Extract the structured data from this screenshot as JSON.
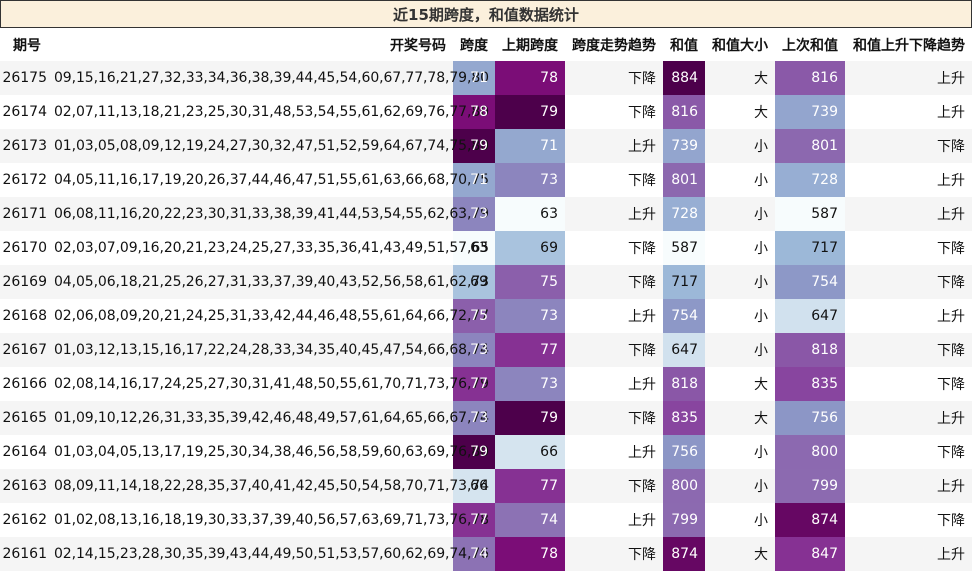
{
  "title": "近15期跨度，和值数据统计",
  "headers": {
    "issue": "期号",
    "draw": "开奖号码",
    "span": "跨度",
    "prev_span": "上期跨度",
    "span_trend": "跨度走势趋势",
    "sum": "和值",
    "sum_size": "和值大小",
    "prev_sum": "上次和值",
    "sum_trend": "和值上升下降趋势"
  },
  "colors": {
    "scale_light": "#f7fcfd",
    "scale_mid": "#8c96c6",
    "scale_dark": "#4d004b",
    "header_bg": "#fbf0dc",
    "stripe": "#f5f5f5"
  },
  "rows": [
    {
      "issue": "26175",
      "draw": "09,15,16,21,27,32,33,34,36,38,39,44,45,54,60,67,77,78,79,80",
      "span": "71",
      "prev_span": "78",
      "span_trend": "下降",
      "sum": "884",
      "sum_size": "大",
      "prev_sum": "816",
      "sum_trend": "上升"
    },
    {
      "issue": "26174",
      "draw": "02,07,11,13,18,21,23,25,30,31,48,53,54,55,61,62,69,76,77,80",
      "span": "78",
      "prev_span": "79",
      "span_trend": "下降",
      "sum": "816",
      "sum_size": "大",
      "prev_sum": "739",
      "sum_trend": "上升"
    },
    {
      "issue": "26173",
      "draw": "01,03,05,08,09,12,19,24,27,30,32,47,51,52,59,64,67,74,75,80",
      "span": "79",
      "prev_span": "71",
      "span_trend": "上升",
      "sum": "739",
      "sum_size": "小",
      "prev_sum": "801",
      "sum_trend": "下降"
    },
    {
      "issue": "26172",
      "draw": "04,05,11,16,17,19,20,26,37,44,46,47,51,55,61,63,66,68,70,75",
      "span": "71",
      "prev_span": "73",
      "span_trend": "下降",
      "sum": "801",
      "sum_size": "小",
      "prev_sum": "728",
      "sum_trend": "上升"
    },
    {
      "issue": "26171",
      "draw": "06,08,11,16,20,22,23,30,31,33,38,39,41,44,53,54,55,62,63,79",
      "span": "73",
      "prev_span": "63",
      "span_trend": "上升",
      "sum": "728",
      "sum_size": "小",
      "prev_sum": "587",
      "sum_trend": "上升"
    },
    {
      "issue": "26170",
      "draw": "02,03,07,09,16,20,21,23,24,25,27,33,35,36,41,43,49,51,57,65",
      "span": "63",
      "prev_span": "69",
      "span_trend": "下降",
      "sum": "587",
      "sum_size": "小",
      "prev_sum": "717",
      "sum_trend": "下降"
    },
    {
      "issue": "26169",
      "draw": "04,05,06,18,21,25,26,27,31,33,37,39,40,43,52,56,58,61,62,73",
      "span": "69",
      "prev_span": "75",
      "span_trend": "下降",
      "sum": "717",
      "sum_size": "小",
      "prev_sum": "754",
      "sum_trend": "下降"
    },
    {
      "issue": "26168",
      "draw": "02,06,08,09,20,21,24,25,31,33,42,44,46,48,55,61,64,66,72,77",
      "span": "75",
      "prev_span": "73",
      "span_trend": "上升",
      "sum": "754",
      "sum_size": "小",
      "prev_sum": "647",
      "sum_trend": "上升"
    },
    {
      "issue": "26167",
      "draw": "01,03,12,13,15,16,17,22,24,28,33,34,35,40,45,47,54,66,68,74",
      "span": "73",
      "prev_span": "77",
      "span_trend": "下降",
      "sum": "647",
      "sum_size": "小",
      "prev_sum": "818",
      "sum_trend": "下降"
    },
    {
      "issue": "26166",
      "draw": "02,08,14,16,17,24,25,27,30,31,41,48,50,55,61,70,71,73,76,79",
      "span": "77",
      "prev_span": "73",
      "span_trend": "上升",
      "sum": "818",
      "sum_size": "大",
      "prev_sum": "835",
      "sum_trend": "下降"
    },
    {
      "issue": "26165",
      "draw": "01,09,10,12,26,31,33,35,39,42,46,48,49,57,61,64,65,66,67,74",
      "span": "73",
      "prev_span": "79",
      "span_trend": "下降",
      "sum": "835",
      "sum_size": "大",
      "prev_sum": "756",
      "sum_trend": "上升"
    },
    {
      "issue": "26164",
      "draw": "01,03,04,05,13,17,19,25,30,34,38,46,56,58,59,60,63,69,76,80",
      "span": "79",
      "prev_span": "66",
      "span_trend": "上升",
      "sum": "756",
      "sum_size": "小",
      "prev_sum": "800",
      "sum_trend": "下降"
    },
    {
      "issue": "26163",
      "draw": "08,09,11,14,18,22,28,35,37,40,41,42,45,50,54,58,70,71,73,74",
      "span": "66",
      "prev_span": "77",
      "span_trend": "下降",
      "sum": "800",
      "sum_size": "小",
      "prev_sum": "799",
      "sum_trend": "上升"
    },
    {
      "issue": "26162",
      "draw": "01,02,08,13,16,18,19,30,33,37,39,40,56,57,63,69,71,73,76,78",
      "span": "77",
      "prev_span": "74",
      "span_trend": "上升",
      "sum": "799",
      "sum_size": "小",
      "prev_sum": "874",
      "sum_trend": "下降"
    },
    {
      "issue": "26161",
      "draw": "02,14,15,23,28,30,35,39,43,44,49,50,51,53,57,60,62,69,74,76",
      "span": "74",
      "prev_span": "78",
      "span_trend": "下降",
      "sum": "874",
      "sum_size": "大",
      "prev_sum": "847",
      "sum_trend": "上升"
    }
  ]
}
